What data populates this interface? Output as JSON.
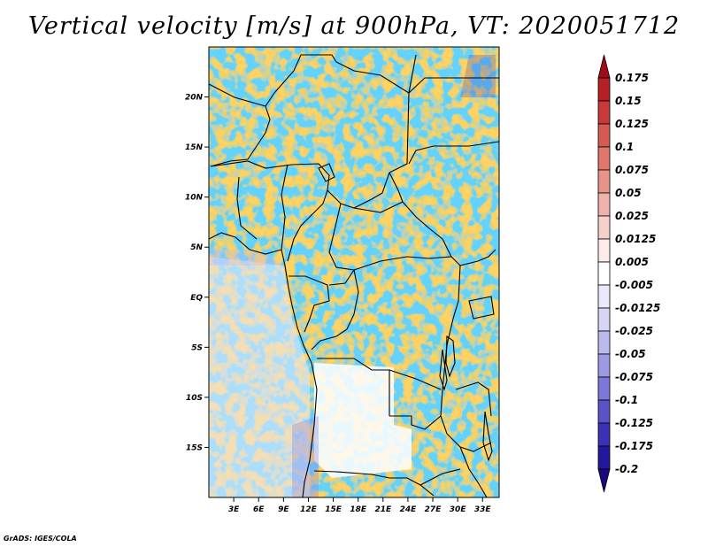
{
  "title": "Vertical velocity [m/s] at 900hPa, VT: 2020051712",
  "footer": "GrADS: IGES/COLA",
  "map": {
    "lat_range": [
      -20,
      25
    ],
    "lon_range": [
      0,
      35
    ],
    "lat_labels": [
      "20N",
      "15N",
      "10N",
      "5N",
      "EQ",
      "5S",
      "10S",
      "15S"
    ],
    "lat_values": [
      20,
      15,
      10,
      5,
      0,
      -5,
      -10,
      -15
    ],
    "lon_labels": [
      "3E",
      "6E",
      "9E",
      "12E",
      "15E",
      "18E",
      "21E",
      "24E",
      "27E",
      "30E",
      "33E"
    ],
    "lon_values": [
      3,
      6,
      9,
      12,
      15,
      18,
      21,
      24,
      27,
      30,
      33
    ]
  },
  "colorbar": {
    "levels": [
      "0.175",
      "0.15",
      "0.125",
      "0.1",
      "0.075",
      "0.05",
      "0.025",
      "0.0125",
      "0.005",
      "-0.005",
      "-0.0125",
      "-0.025",
      "-0.05",
      "-0.075",
      "-0.1",
      "-0.125",
      "-0.175",
      "-0.2"
    ],
    "colors": [
      "#a00d1a",
      "#b52025",
      "#c83a38",
      "#d65a52",
      "#e0766c",
      "#e8938a",
      "#f0b2aa",
      "#f7d0ca",
      "#fcebe8",
      "#ffffff",
      "#ebeafb",
      "#d6d5f6",
      "#bcb9ee",
      "#9d99e4",
      "#7c77d8",
      "#5a53c8",
      "#3a31b4",
      "#22189c",
      "#1a0a80"
    ]
  }
}
